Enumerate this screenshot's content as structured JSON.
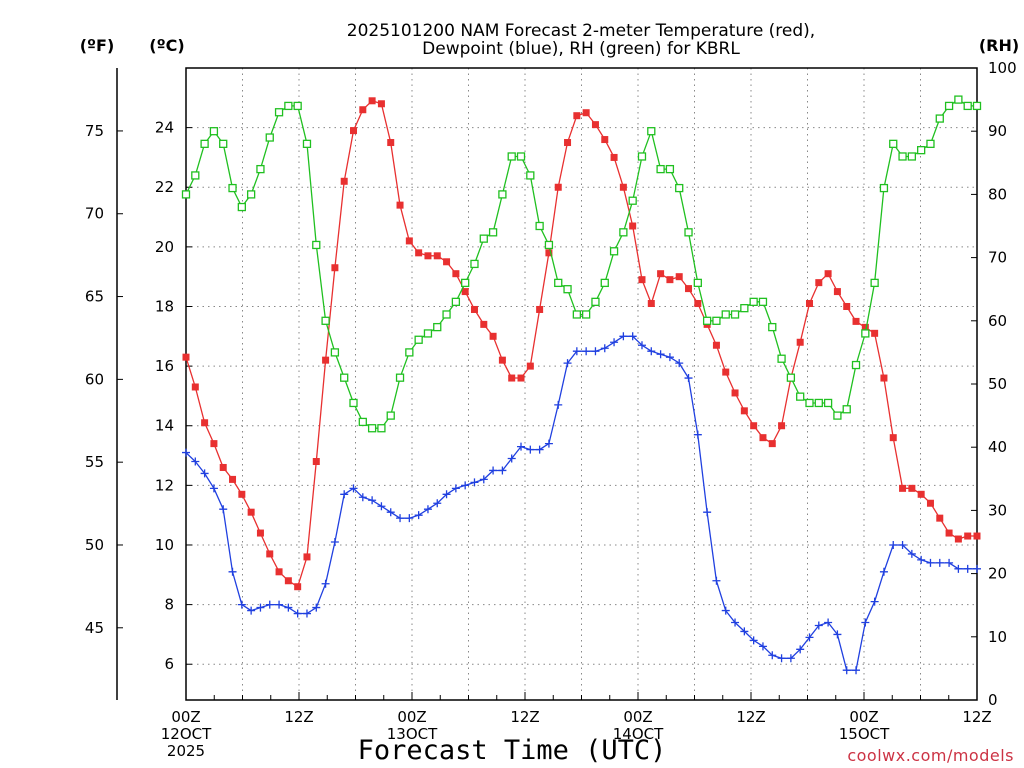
{
  "chart_data": {
    "type": "line",
    "title_line1": "2025101200 NAM Forecast 2-meter Temperature (red),",
    "title_line2": "Dewpoint (blue), RH (green) for KBRL",
    "unit_f": "(ºF)",
    "unit_c": "(ºC)",
    "unit_rh": "(RH)",
    "xlabel": "Forecast Time (UTC)",
    "credit": "coolwx.com/models",
    "x_range_hours": [
      0,
      84
    ],
    "y_left_c_range": [
      4.8,
      26
    ],
    "y_right_rh_range": [
      0,
      100
    ],
    "y_c_ticks": [
      "6",
      "8",
      "10",
      "12",
      "14",
      "16",
      "18",
      "20",
      "22",
      "24"
    ],
    "y_f_ticks": [
      "45",
      "50",
      "55",
      "60",
      "65",
      "70",
      "75"
    ],
    "y_rh_ticks": [
      "0",
      "10",
      "20",
      "30",
      "40",
      "50",
      "60",
      "70",
      "80",
      "90",
      "100"
    ],
    "x_ticks": [
      {
        "hour": 0,
        "label": "00Z",
        "sub1": "12OCT",
        "sub2": "2025"
      },
      {
        "hour": 12,
        "label": "12Z",
        "sub1": "",
        "sub2": ""
      },
      {
        "hour": 24,
        "label": "00Z",
        "sub1": "13OCT",
        "sub2": ""
      },
      {
        "hour": 36,
        "label": "12Z",
        "sub1": "",
        "sub2": ""
      },
      {
        "hour": 48,
        "label": "00Z",
        "sub1": "14OCT",
        "sub2": ""
      },
      {
        "hour": 60,
        "label": "12Z",
        "sub1": "",
        "sub2": ""
      },
      {
        "hour": 72,
        "label": "00Z",
        "sub1": "15OCT",
        "sub2": ""
      },
      {
        "hour": 84,
        "label": "12Z",
        "sub1": "",
        "sub2": ""
      }
    ],
    "series": [
      {
        "name": "Temperature (°C)",
        "color": "#e83030",
        "marker": "filled-square",
        "axis": "left",
        "values": [
          16.3,
          15.3,
          14.1,
          13.4,
          12.6,
          12.2,
          11.7,
          11.1,
          10.4,
          9.7,
          9.1,
          8.8,
          8.6,
          9.6,
          12.8,
          16.2,
          19.3,
          22.2,
          23.9,
          24.6,
          24.9,
          24.8,
          23.5,
          21.4,
          20.2,
          19.8,
          19.7,
          19.7,
          19.5,
          19.1,
          18.5,
          17.9,
          17.4,
          17.0,
          16.2,
          15.6,
          15.6,
          16.0,
          17.9,
          19.8,
          22.0,
          23.5,
          24.4,
          24.5,
          24.1,
          23.6,
          23.0,
          22.0,
          20.7,
          18.9,
          18.1,
          19.1,
          18.9,
          19.0,
          18.6,
          18.1,
          17.4,
          16.7,
          15.8,
          15.1,
          14.5,
          14.0,
          13.6,
          13.4,
          14.0,
          15.6,
          16.8,
          18.1,
          18.8,
          19.1,
          18.5,
          18.0,
          17.5,
          17.3,
          17.1,
          15.6,
          13.6,
          11.9,
          11.9,
          11.7,
          11.4,
          10.9,
          10.4,
          10.2,
          10.3,
          10.3
        ]
      },
      {
        "name": "Dewpoint (°C)",
        "color": "#2040e0",
        "marker": "plus",
        "axis": "left",
        "values": [
          13.1,
          12.8,
          12.4,
          11.9,
          11.2,
          9.1,
          8.0,
          7.8,
          7.9,
          8.0,
          8.0,
          7.9,
          7.7,
          7.7,
          7.9,
          8.7,
          10.1,
          11.7,
          11.9,
          11.6,
          11.5,
          11.3,
          11.1,
          10.9,
          10.9,
          11.0,
          11.2,
          11.4,
          11.7,
          11.9,
          12.0,
          12.1,
          12.2,
          12.5,
          12.5,
          12.9,
          13.3,
          13.2,
          13.2,
          13.4,
          14.7,
          16.1,
          16.5,
          16.5,
          16.5,
          16.6,
          16.8,
          17.0,
          17.0,
          16.7,
          16.5,
          16.4,
          16.3,
          16.1,
          15.6,
          13.7,
          11.1,
          8.8,
          7.8,
          7.4,
          7.1,
          6.8,
          6.6,
          6.3,
          6.2,
          6.2,
          6.5,
          6.9,
          7.3,
          7.4,
          7.0,
          5.8,
          5.8,
          7.4,
          8.1,
          9.1,
          10.0,
          10.0,
          9.7,
          9.5,
          9.4,
          9.4,
          9.4,
          9.2,
          9.2,
          9.2
        ]
      },
      {
        "name": "RH (%)",
        "color": "#20c020",
        "marker": "open-square",
        "axis": "right",
        "values": [
          80,
          83,
          88,
          90,
          88,
          81,
          78,
          80,
          84,
          89,
          93,
          94,
          94,
          88,
          72,
          60,
          55,
          51,
          47,
          44,
          43,
          43,
          45,
          51,
          55,
          57,
          58,
          59,
          61,
          63,
          66,
          69,
          73,
          74,
          80,
          86,
          86,
          83,
          75,
          72,
          66,
          65,
          61,
          61,
          63,
          66,
          71,
          74,
          79,
          86,
          90,
          84,
          84,
          81,
          74,
          66,
          60,
          60,
          61,
          61,
          62,
          63,
          63,
          59,
          54,
          51,
          48,
          47,
          47,
          47,
          45,
          46,
          53,
          58,
          66,
          81,
          88,
          86,
          86,
          87,
          88,
          92,
          94,
          95,
          94,
          94
        ]
      }
    ]
  }
}
